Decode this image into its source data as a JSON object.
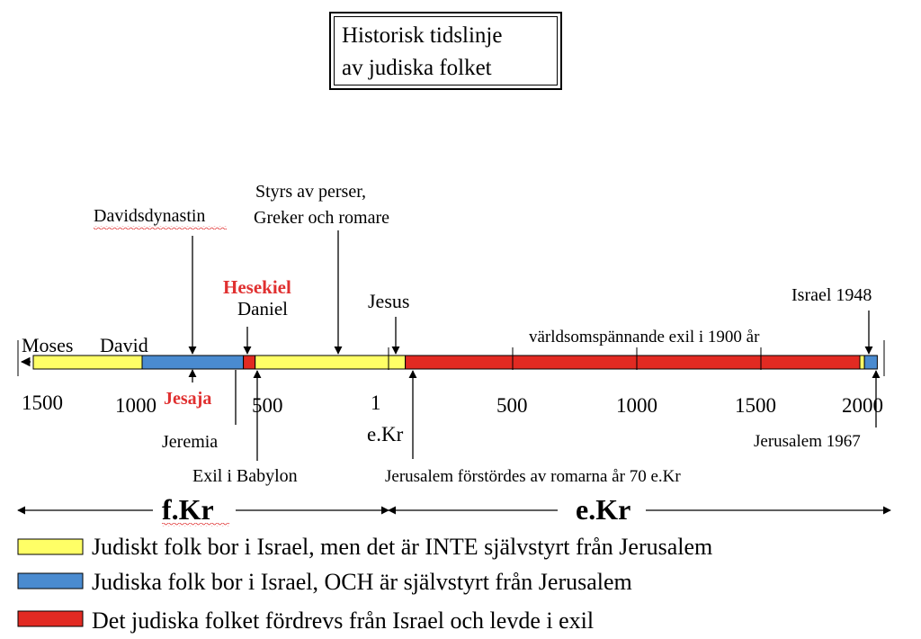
{
  "title": {
    "line1": "Historisk tidslinje",
    "line2": "av judiska folket"
  },
  "colors": {
    "self_governed": "#4a8bd0",
    "not_self_governed": "#ffff66",
    "exile": "#e22a22",
    "highlight_text": "#e03030"
  },
  "timeline": {
    "ticks": [
      "1500",
      "1000",
      "500",
      "1",
      "500",
      "1000",
      "1500",
      "2000"
    ],
    "era_label_ce": "e.Kr",
    "periods": [
      {
        "from": -1500,
        "to": -1000,
        "status": "not_self_governed"
      },
      {
        "from": -1000,
        "to": -586,
        "status": "self_governed"
      },
      {
        "from": -586,
        "to": -538,
        "status": "exile"
      },
      {
        "from": -538,
        "to": 70,
        "status": "not_self_governed"
      },
      {
        "from": 70,
        "to": 1948,
        "status": "exile"
      },
      {
        "from": 1948,
        "to": 1967,
        "status": "not_self_governed"
      },
      {
        "from": 1967,
        "to": 2020,
        "status": "self_governed"
      }
    ]
  },
  "labels": {
    "moses": "Moses",
    "david": "David",
    "davidsdynastin": "Davidsdynastin",
    "jesaja": "Jesaja",
    "jeremia": "Jeremia",
    "exil_babylon": "Exil i Babylon",
    "hesekiel": "Hesekiel",
    "daniel": "Daniel",
    "styrs_line1": "Styrs av perser,",
    "styrs_line2": "Greker och romare",
    "jesus": "Jesus",
    "exile_1900": "världsomspännande exil i 1900 år",
    "israel_1948": "Israel 1948",
    "jerusalem_1967": "Jerusalem 1967",
    "jerusalem_70": "Jerusalem förstördes av romarna år 70 e.Kr"
  },
  "eras": {
    "bce": "f.Kr",
    "ce": "e.Kr"
  },
  "legend": [
    {
      "status": "not_self_governed",
      "text": "Judiskt folk bor i Israel, men det är INTE självstyrt från Jerusalem"
    },
    {
      "status": "self_governed",
      "text": "Judiska folk bor i Israel, OCH är självstyrt från Jerusalem"
    },
    {
      "status": "exile",
      "text": "Det judiska folket fördrevs från Israel och levde i exil"
    }
  ]
}
